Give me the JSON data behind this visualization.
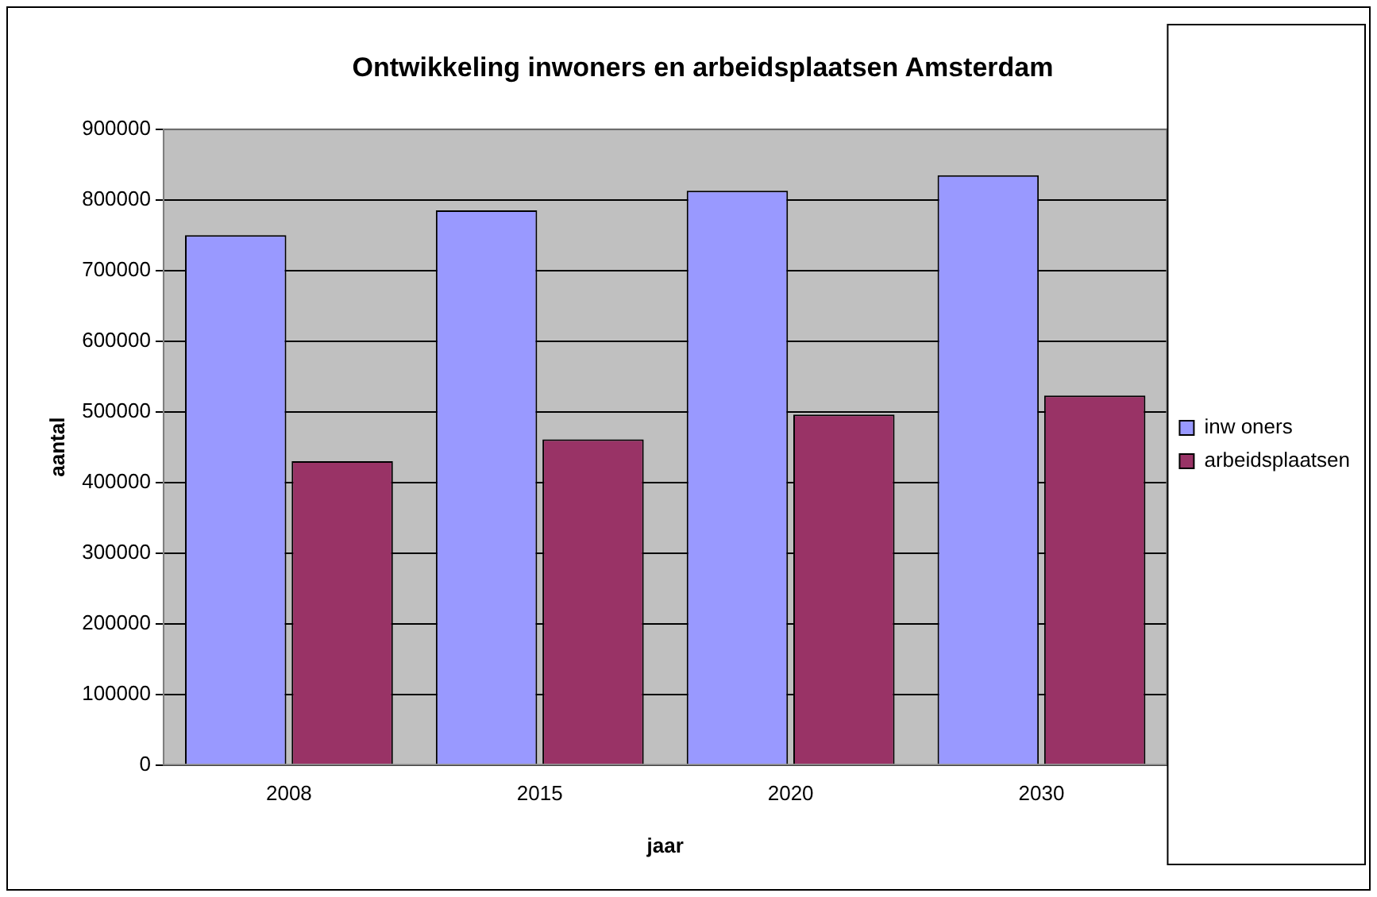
{
  "chart_data": {
    "type": "bar",
    "title": "Ontwikkeling inwoners en arbeidsplaatsen Amsterdam",
    "xlabel": "jaar",
    "ylabel": "aantal",
    "categories": [
      "2008",
      "2015",
      "2020",
      "2030"
    ],
    "series": [
      {
        "name": "inw oners",
        "color": "#9999ff",
        "values": [
          750000,
          785000,
          813000,
          835000
        ]
      },
      {
        "name": "arbeidsplaatsen",
        "color": "#993366",
        "values": [
          430000,
          461000,
          496000,
          523000
        ]
      }
    ],
    "ylim": [
      0,
      900000
    ],
    "yticks": [
      0,
      100000,
      200000,
      300000,
      400000,
      500000,
      600000,
      700000,
      800000,
      900000
    ],
    "grid": "y",
    "legend": "right"
  }
}
